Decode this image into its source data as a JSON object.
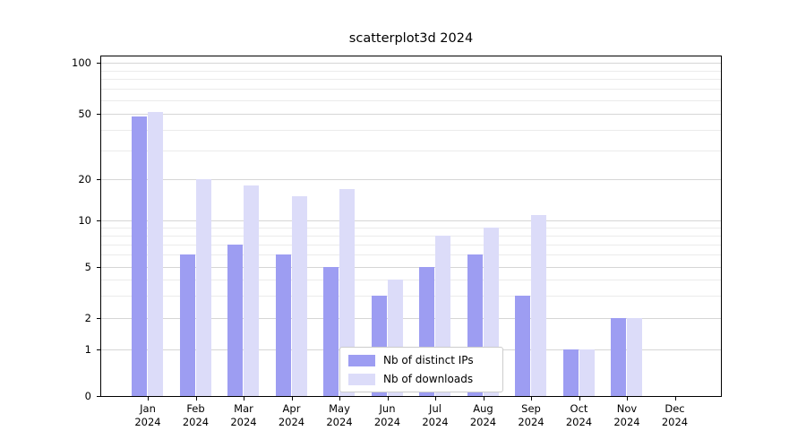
{
  "colors": {
    "distinct_ips": "#9d9df2",
    "downloads": "#dcdcf9",
    "grid_major": "#d6d6d6",
    "grid_minor": "#ebebeb",
    "axis": "#000000",
    "legend_border": "#cccccc"
  },
  "chart_data": {
    "type": "bar",
    "title": "scatterplot3d 2024",
    "categories": [
      "Jan 2024",
      "Feb 2024",
      "Mar 2024",
      "Apr 2024",
      "May 2024",
      "Jun 2024",
      "Jul 2024",
      "Aug 2024",
      "Sep 2024",
      "Oct 2024",
      "Nov 2024",
      "Dec 2024"
    ],
    "series": [
      {
        "name": "Nb of distinct IPs",
        "values": [
          48,
          6,
          7,
          6,
          5,
          3,
          5,
          6,
          3,
          1,
          2,
          0
        ]
      },
      {
        "name": "Nb of downloads",
        "values": [
          51,
          20,
          18,
          15,
          17,
          4,
          8,
          9,
          11,
          1,
          2,
          0
        ]
      }
    ],
    "yscale": "log-like (0 shown at baseline)",
    "yticks": [
      100,
      50,
      20,
      10,
      5,
      2,
      1,
      0
    ],
    "ylim": [
      0,
      100
    ],
    "grid": true,
    "legend_position": "lower center"
  }
}
